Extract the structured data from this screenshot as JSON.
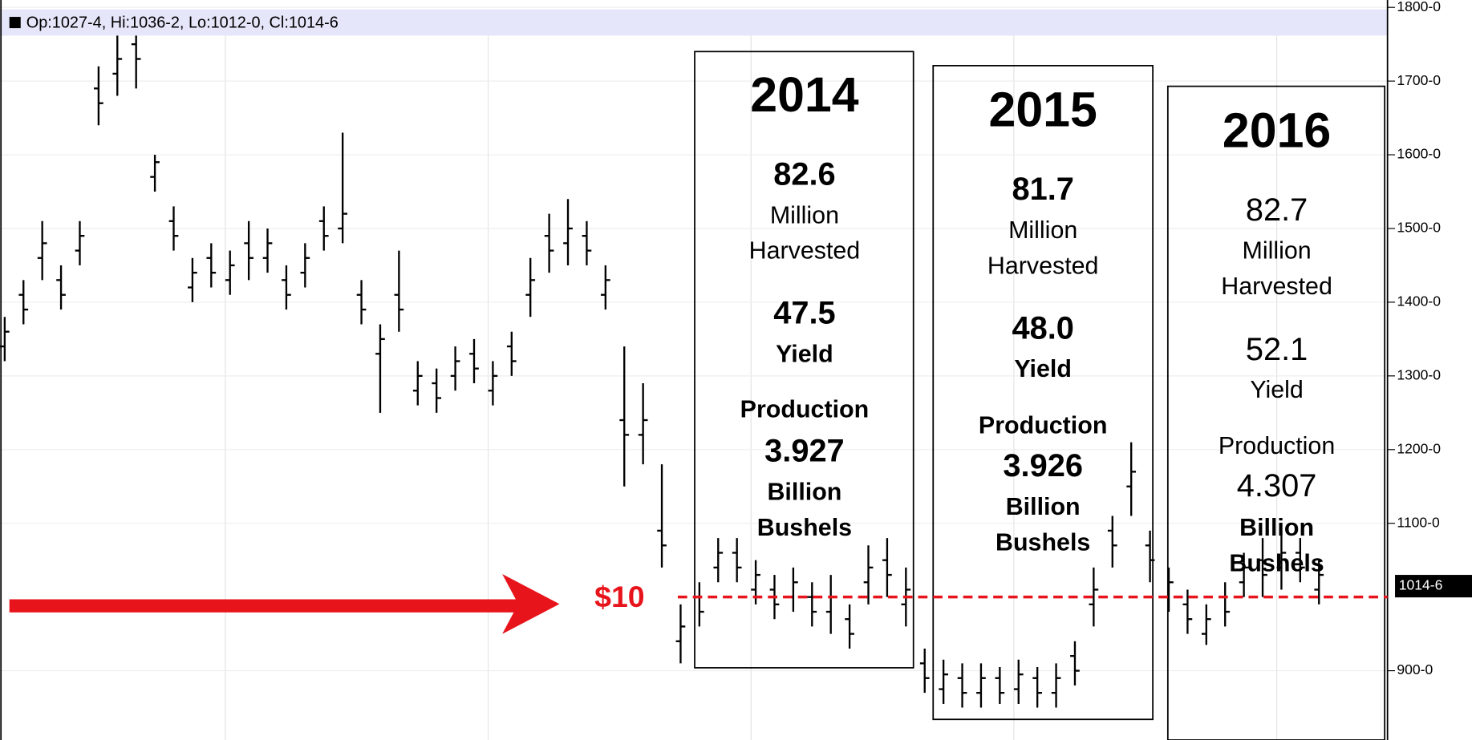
{
  "chart_data": {
    "type": "ohlc",
    "header": "Op:1027-4, Hi:1036-2, Lo:1012-0, Cl:1014-6",
    "ylim": [
      806,
      1810
    ],
    "yticks": [
      {
        "value": 900,
        "label": "900-0"
      },
      {
        "value": 1100,
        "label": "1100-0"
      },
      {
        "value": 1200,
        "label": "1200-0"
      },
      {
        "value": 1300,
        "label": "1300-0"
      },
      {
        "value": 1400,
        "label": "1400-0"
      },
      {
        "value": 1500,
        "label": "1500-0"
      },
      {
        "value": 1600,
        "label": "1600-0"
      },
      {
        "value": 1700,
        "label": "1700-0"
      },
      {
        "value": 1800,
        "label": "1800-0"
      }
    ],
    "color": "#000000",
    "grid": true,
    "open": [
      1340,
      1410,
      1460,
      1430,
      1470,
      1690,
      1710,
      1750,
      1570,
      1510,
      1420,
      1460,
      1430,
      1480,
      1460,
      1430,
      1440,
      1510,
      1500,
      1410,
      1330,
      1410,
      1280,
      1290,
      1300,
      1330,
      1280,
      1340,
      1410,
      1490,
      1480,
      1490,
      1410,
      1240,
      1220,
      1090,
      940,
      1000,
      1040,
      1060,
      1010,
      1010,
      1000,
      1000,
      980,
      970,
      1020,
      1050,
      990,
      910,
      875,
      890,
      870,
      890,
      875,
      890,
      870,
      920,
      990,
      1090,
      1150,
      1070,
      1000,
      990,
      950,
      1000,
      1020,
      1050,
      1040,
      1060,
      1010
    ],
    "high": [
      1380,
      1430,
      1510,
      1450,
      1510,
      1720,
      1770,
      1790,
      1600,
      1530,
      1460,
      1480,
      1470,
      1510,
      1500,
      1450,
      1480,
      1530,
      1630,
      1430,
      1370,
      1470,
      1320,
      1310,
      1340,
      1350,
      1320,
      1360,
      1460,
      1520,
      1540,
      1510,
      1450,
      1340,
      1290,
      1180,
      990,
      1020,
      1080,
      1080,
      1050,
      1030,
      1040,
      1020,
      1030,
      990,
      1070,
      1080,
      1040,
      930,
      915,
      910,
      910,
      905,
      915,
      905,
      910,
      940,
      1040,
      1110,
      1210,
      1090,
      1040,
      1010,
      990,
      1020,
      1060,
      1080,
      1090,
      1080,
      1050
    ],
    "low": [
      1320,
      1370,
      1430,
      1390,
      1450,
      1640,
      1680,
      1690,
      1550,
      1470,
      1400,
      1420,
      1410,
      1430,
      1440,
      1390,
      1420,
      1470,
      1480,
      1370,
      1250,
      1360,
      1260,
      1250,
      1280,
      1290,
      1260,
      1300,
      1380,
      1440,
      1450,
      1450,
      1390,
      1150,
      1180,
      1040,
      910,
      960,
      1020,
      1020,
      990,
      970,
      980,
      960,
      950,
      930,
      990,
      1000,
      960,
      870,
      855,
      850,
      850,
      855,
      855,
      850,
      850,
      880,
      960,
      1040,
      1110,
      1020,
      980,
      950,
      935,
      960,
      1000,
      1000,
      1010,
      1020,
      990
    ],
    "close": [
      1360,
      1390,
      1480,
      1410,
      1490,
      1670,
      1730,
      1730,
      1590,
      1490,
      1440,
      1440,
      1450,
      1460,
      1480,
      1410,
      1460,
      1490,
      1520,
      1390,
      1350,
      1390,
      1300,
      1270,
      1320,
      1310,
      1300,
      1320,
      1430,
      1470,
      1500,
      1470,
      1430,
      1220,
      1240,
      1070,
      960,
      980,
      1060,
      1040,
      1030,
      990,
      1020,
      980,
      1000,
      950,
      1040,
      1030,
      1010,
      890,
      895,
      870,
      890,
      870,
      895,
      870,
      890,
      900,
      1010,
      1070,
      1170,
      1050,
      1020,
      970,
      970,
      980,
      1040,
      1030,
      1060,
      1040,
      1030
    ],
    "reference_line": {
      "value": 1000,
      "label": "$10",
      "color": "#e8141c"
    },
    "last_price": {
      "value": 1014.75,
      "label": "1014-6"
    },
    "panels": [
      {
        "year": "2014",
        "acres": "82.6",
        "acres_unit": "Million",
        "acres_label": "Harvested",
        "yield": "47.5",
        "yield_label": "Yield",
        "production_label": "Production",
        "production": "3.927",
        "production_unit": "Billion",
        "production_unit2": "Bushels"
      },
      {
        "year": "2015",
        "acres": "81.7",
        "acres_unit": "Million",
        "acres_label": "Harvested",
        "yield": "48.0",
        "yield_label": "Yield",
        "production_label": "Production",
        "production": "3.926",
        "production_unit": "Billion",
        "production_unit2": "Bushels"
      },
      {
        "year": "2016",
        "acres": "82.7",
        "acres_unit": "Million",
        "acres_label": "Harvested",
        "yield": "52.1",
        "yield_label": "Yield",
        "production_label": "Production",
        "production": "4.307",
        "production_unit": "Billion",
        "production_unit2": "Bushels"
      }
    ]
  }
}
